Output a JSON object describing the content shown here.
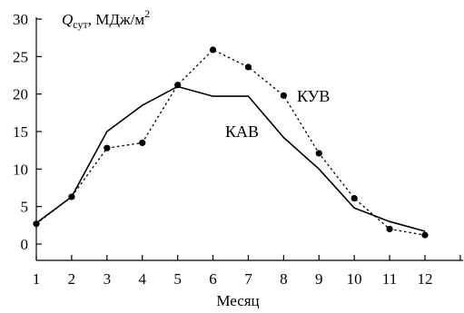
{
  "chart_data": {
    "type": "line",
    "xlabel": "Месяц",
    "ylabel": {
      "symbol": "Q",
      "subscript": "сут",
      "unit": ", МДж/м",
      "superscript": "2"
    },
    "xlim": [
      1,
      12
    ],
    "ylim": [
      0,
      30
    ],
    "x_ticks": [
      1,
      2,
      3,
      4,
      5,
      6,
      7,
      8,
      9,
      10,
      11,
      12
    ],
    "y_ticks": [
      0,
      5,
      10,
      15,
      20,
      25,
      30
    ],
    "grid": false,
    "series": [
      {
        "name": "КАВ",
        "style": "solid",
        "markers": false,
        "x": [
          1,
          2,
          3,
          4,
          5,
          6,
          7,
          8,
          9,
          10,
          11,
          12
        ],
        "y": [
          2.8,
          6.3,
          15.0,
          18.5,
          21.0,
          19.7,
          19.7,
          14.2,
          10.0,
          4.8,
          3.0,
          1.7
        ]
      },
      {
        "name": "КУВ",
        "style": "dotted",
        "markers": true,
        "x": [
          1,
          2,
          3,
          4,
          5,
          6,
          7,
          8,
          9,
          10,
          11,
          12
        ],
        "y": [
          2.7,
          6.3,
          12.8,
          13.5,
          21.2,
          25.9,
          23.6,
          19.8,
          12.1,
          6.1,
          2.0,
          1.2
        ]
      }
    ]
  }
}
